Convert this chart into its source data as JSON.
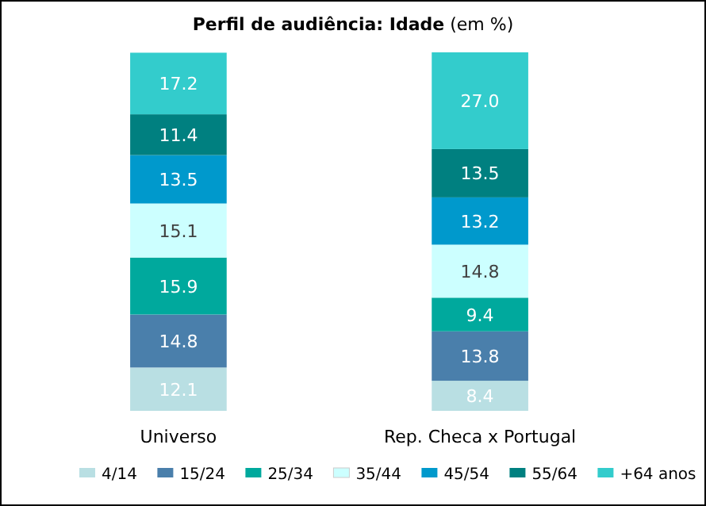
{
  "chart_data": {
    "type": "bar",
    "stacked": true,
    "title": "Perfil de audiência: Idade",
    "subtitle": "(em %)",
    "categories": [
      "Universo",
      "Rep. Checa x Portugal"
    ],
    "legend": "bottom",
    "series": [
      {
        "name": "4/14",
        "color": "#b9dfe3",
        "values": [
          12.1,
          8.4
        ],
        "value_labels": [
          "12.1",
          "8.4"
        ]
      },
      {
        "name": "15/24",
        "color": "#4a7fab",
        "values": [
          14.8,
          13.8
        ],
        "value_labels": [
          "14.8",
          "13.8"
        ]
      },
      {
        "name": "25/34",
        "color": "#00a99d",
        "values": [
          15.9,
          9.4
        ],
        "value_labels": [
          "15.9",
          "9.4"
        ]
      },
      {
        "name": "35/44",
        "color": "#ccffff",
        "values": [
          15.1,
          14.8
        ],
        "value_labels": [
          "15.1",
          "14.8"
        ]
      },
      {
        "name": "45/54",
        "color": "#0099cc",
        "values": [
          13.5,
          13.2
        ],
        "value_labels": [
          "13.5",
          "13.2"
        ]
      },
      {
        "name": "55/64",
        "color": "#008080",
        "values": [
          11.4,
          13.5
        ],
        "value_labels": [
          "11.4",
          "13.5"
        ]
      },
      {
        "name": "+64 anos",
        "color": "#33cccc",
        "values": [
          17.2,
          27.0
        ],
        "value_labels": [
          "17.2",
          "27.0"
        ]
      }
    ]
  }
}
